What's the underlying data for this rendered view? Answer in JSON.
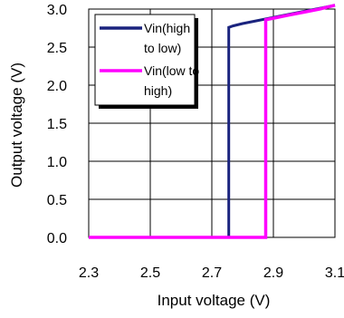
{
  "chart_data": {
    "type": "line",
    "xlabel": "Input voltage (V)",
    "ylabel": "Output voltage (V)",
    "xlim": [
      2.3,
      3.1
    ],
    "ylim": [
      0.0,
      3.0
    ],
    "x_ticks": [
      "2.3",
      "2.5",
      "2.7",
      "2.9",
      "3.1"
    ],
    "y_ticks": [
      "0.0",
      "0.5",
      "1.0",
      "1.5",
      "2.0",
      "2.5",
      "3.0"
    ],
    "grid": true,
    "legend_position": "top-left",
    "series": [
      {
        "name": "Vin(high to low)",
        "name_lines": [
          "Vin(high",
          "to low)"
        ],
        "color": "#1a237e",
        "x": [
          2.3,
          2.755,
          2.755,
          2.77,
          2.8,
          2.85,
          2.9,
          2.95,
          3.0,
          3.05,
          3.1
        ],
        "y": [
          0.0,
          0.0,
          2.76,
          2.78,
          2.81,
          2.85,
          2.89,
          2.93,
          2.97,
          3.01,
          3.05
        ]
      },
      {
        "name": "Vin(low to high)",
        "name_lines": [
          "Vin(low to",
          "high)"
        ],
        "color": "#ff00ff",
        "x": [
          2.3,
          2.875,
          2.875,
          2.9,
          2.95,
          3.0,
          3.05,
          3.1
        ],
        "y": [
          0.0,
          0.0,
          2.86,
          2.88,
          2.92,
          2.96,
          3.0,
          3.05
        ]
      }
    ]
  }
}
